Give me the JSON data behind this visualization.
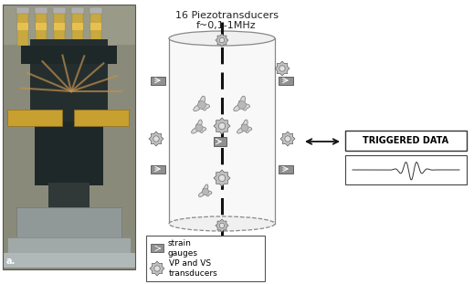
{
  "title_line1": "16 Piezotransducers",
  "title_line2": "f~0,1-1MHz",
  "triggered_label": "TRIGGERED DATA",
  "legend_strain": "strain\ngauges",
  "legend_transducer": "VP and VS\ntransducers",
  "bg_color": "#ffffff",
  "cylinder_color": "#888888",
  "cylinder_fill": "#f5f5f5",
  "text_color": "#222222",
  "arrow_color": "#111111",
  "label_a": "a.",
  "photo_bg": "#7a6a5a",
  "photo_top": "#d4b870",
  "photo_mid_dark": "#2a3a3a",
  "photo_mid_light": "#888070",
  "photo_wire": "#c09850",
  "photo_bottom": "#909090"
}
